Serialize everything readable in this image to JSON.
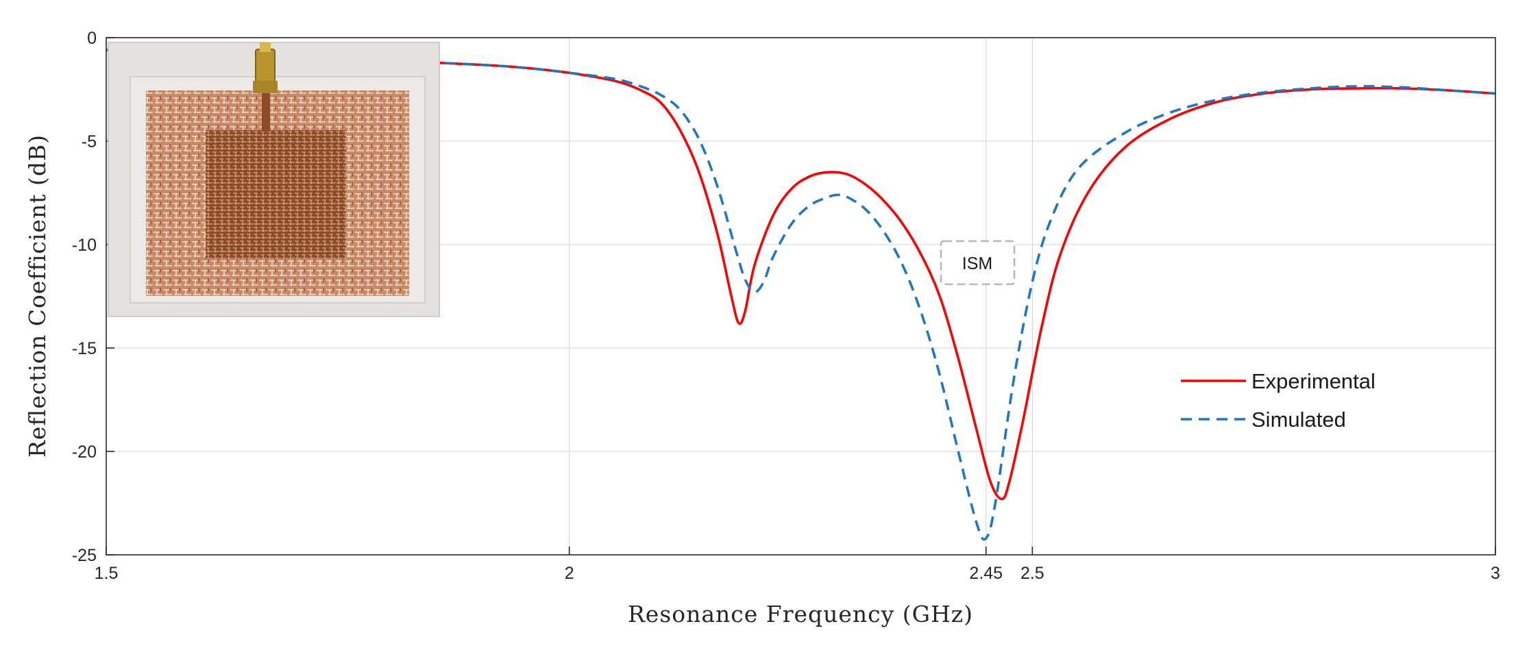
{
  "chart_data": {
    "type": "line",
    "title": "",
    "xlabel": "Resonance Frequency (GHz)",
    "ylabel": "Reflection Coefficient (dB)",
    "xlim": [
      1.5,
      3.0
    ],
    "ylim": [
      -25,
      0
    ],
    "xticks": [
      1.5,
      2,
      2.45,
      2.5,
      3
    ],
    "xtick_labels": [
      "1.5",
      "2",
      "2.45",
      "2.5",
      "3"
    ],
    "yticks": [
      0,
      -5,
      -10,
      -15,
      -20,
      -25
    ],
    "ytick_labels": [
      "0",
      "-5",
      "-10",
      "-15",
      "-20",
      "-25"
    ],
    "grid": true,
    "legend_position": "right",
    "series": [
      {
        "name": "Experimental",
        "color": "#ff0000",
        "style": "solid",
        "points": [
          [
            1.5,
            -0.6
          ],
          [
            1.6,
            -0.8
          ],
          [
            1.7,
            -0.95
          ],
          [
            1.8,
            -1.1
          ],
          [
            1.9,
            -1.3
          ],
          [
            1.95,
            -1.45
          ],
          [
            2.0,
            -1.7
          ],
          [
            2.05,
            -2.1
          ],
          [
            2.08,
            -2.6
          ],
          [
            2.1,
            -3.2
          ],
          [
            2.12,
            -4.5
          ],
          [
            2.14,
            -6.5
          ],
          [
            2.16,
            -9.5
          ],
          [
            2.175,
            -12.5
          ],
          [
            2.183,
            -13.8
          ],
          [
            2.19,
            -13.2
          ],
          [
            2.2,
            -11.0
          ],
          [
            2.22,
            -8.6
          ],
          [
            2.24,
            -7.3
          ],
          [
            2.26,
            -6.7
          ],
          [
            2.28,
            -6.5
          ],
          [
            2.3,
            -6.6
          ],
          [
            2.32,
            -7.1
          ],
          [
            2.34,
            -7.9
          ],
          [
            2.36,
            -9.0
          ],
          [
            2.38,
            -10.5
          ],
          [
            2.4,
            -12.5
          ],
          [
            2.42,
            -15.5
          ],
          [
            2.44,
            -19.0
          ],
          [
            2.455,
            -21.5
          ],
          [
            2.467,
            -22.3
          ],
          [
            2.475,
            -21.5
          ],
          [
            2.49,
            -18.5
          ],
          [
            2.51,
            -14.0
          ],
          [
            2.53,
            -10.5
          ],
          [
            2.56,
            -7.5
          ],
          [
            2.6,
            -5.3
          ],
          [
            2.65,
            -3.9
          ],
          [
            2.7,
            -3.1
          ],
          [
            2.75,
            -2.7
          ],
          [
            2.8,
            -2.5
          ],
          [
            2.85,
            -2.45
          ],
          [
            2.9,
            -2.45
          ],
          [
            2.95,
            -2.55
          ],
          [
            3.0,
            -2.7
          ]
        ]
      },
      {
        "name": "Simulated",
        "color": "#1f77c4",
        "style": "dashed",
        "points": [
          [
            1.5,
            -0.6
          ],
          [
            1.6,
            -0.8
          ],
          [
            1.7,
            -0.95
          ],
          [
            1.8,
            -1.1
          ],
          [
            1.9,
            -1.3
          ],
          [
            1.95,
            -1.45
          ],
          [
            2.0,
            -1.7
          ],
          [
            2.05,
            -2.0
          ],
          [
            2.08,
            -2.4
          ],
          [
            2.1,
            -2.8
          ],
          [
            2.12,
            -3.5
          ],
          [
            2.14,
            -4.9
          ],
          [
            2.16,
            -7.2
          ],
          [
            2.18,
            -10.3
          ],
          [
            2.19,
            -11.7
          ],
          [
            2.2,
            -12.3
          ],
          [
            2.21,
            -11.8
          ],
          [
            2.22,
            -10.6
          ],
          [
            2.24,
            -9.0
          ],
          [
            2.26,
            -8.1
          ],
          [
            2.28,
            -7.7
          ],
          [
            2.29,
            -7.6
          ],
          [
            2.3,
            -7.7
          ],
          [
            2.32,
            -8.3
          ],
          [
            2.34,
            -9.4
          ],
          [
            2.36,
            -11.0
          ],
          [
            2.38,
            -13.3
          ],
          [
            2.4,
            -16.3
          ],
          [
            2.42,
            -20.0
          ],
          [
            2.44,
            -23.5
          ],
          [
            2.45,
            -24.2
          ],
          [
            2.46,
            -22.5
          ],
          [
            2.48,
            -16.5
          ],
          [
            2.5,
            -11.8
          ],
          [
            2.52,
            -8.8
          ],
          [
            2.55,
            -6.3
          ],
          [
            2.6,
            -4.6
          ],
          [
            2.65,
            -3.6
          ],
          [
            2.7,
            -3.0
          ],
          [
            2.75,
            -2.65
          ],
          [
            2.8,
            -2.45
          ],
          [
            2.85,
            -2.35
          ],
          [
            2.9,
            -2.4
          ],
          [
            2.95,
            -2.55
          ],
          [
            3.0,
            -2.7
          ]
        ]
      }
    ],
    "annotations": [
      {
        "text": "ISM",
        "x": 2.44,
        "y": -10.9
      }
    ],
    "inset": {
      "description_icon": "antenna-photo-icon"
    }
  }
}
